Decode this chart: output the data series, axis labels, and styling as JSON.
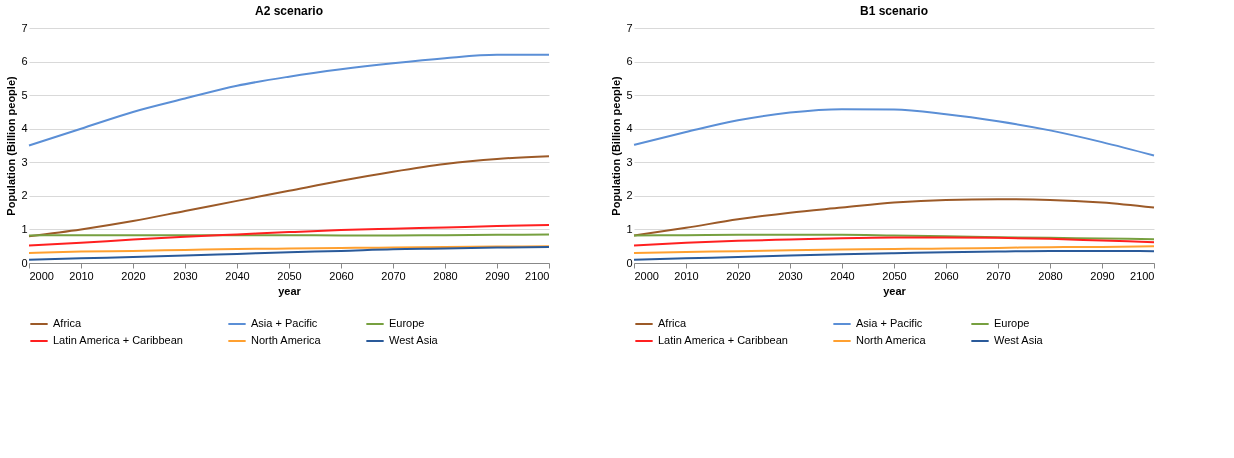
{
  "chart_data": [
    {
      "type": "line",
      "title": "A2 scenario",
      "xlabel": "year",
      "ylabel": "Population (Billion people)",
      "x": [
        2000,
        2010,
        2020,
        2030,
        2040,
        2050,
        2060,
        2070,
        2080,
        2090,
        2100
      ],
      "xlim": [
        2000,
        2100
      ],
      "xticks": [
        2000,
        2010,
        2020,
        2030,
        2040,
        2050,
        2060,
        2070,
        2080,
        2090,
        2100
      ],
      "ylim": [
        0,
        7
      ],
      "yticks": [
        0,
        1,
        2,
        3,
        4,
        5,
        6,
        7
      ],
      "grid": "y",
      "legend": "bottom",
      "marker": "none",
      "line_style": "solid",
      "series": [
        {
          "name": "Africa",
          "color": "#9c5a28",
          "values": [
            0.8,
            1.0,
            1.25,
            1.55,
            1.85,
            2.15,
            2.45,
            2.72,
            2.95,
            3.1,
            3.18
          ]
        },
        {
          "name": "Asia + Pacific",
          "color": "#5b8fd6",
          "values": [
            3.5,
            4.0,
            4.5,
            4.9,
            5.28,
            5.55,
            5.77,
            5.95,
            6.1,
            6.2,
            6.2
          ]
        },
        {
          "name": "Europe",
          "color": "#77a040",
          "values": [
            0.82,
            0.83,
            0.83,
            0.83,
            0.83,
            0.83,
            0.82,
            0.82,
            0.83,
            0.84,
            0.85
          ]
        },
        {
          "name": "Latin America + Caribbean",
          "color": "#ff2020",
          "values": [
            0.52,
            0.6,
            0.7,
            0.78,
            0.85,
            0.92,
            0.98,
            1.02,
            1.06,
            1.1,
            1.13
          ]
        },
        {
          "name": "North America",
          "color": "#ffa030",
          "values": [
            0.3,
            0.34,
            0.36,
            0.39,
            0.42,
            0.43,
            0.45,
            0.46,
            0.48,
            0.49,
            0.5
          ]
        },
        {
          "name": "West Asia",
          "color": "#2a5a9a",
          "values": [
            0.1,
            0.14,
            0.18,
            0.22,
            0.27,
            0.32,
            0.36,
            0.41,
            0.43,
            0.46,
            0.48
          ]
        }
      ]
    },
    {
      "type": "line",
      "title": "B1 scenario",
      "xlabel": "year",
      "ylabel": "Population (Billion people)",
      "x": [
        2000,
        2010,
        2020,
        2030,
        2040,
        2050,
        2060,
        2070,
        2080,
        2090,
        2100
      ],
      "xlim": [
        2000,
        2100
      ],
      "xticks": [
        2000,
        2010,
        2020,
        2030,
        2040,
        2050,
        2060,
        2070,
        2080,
        2090,
        2100
      ],
      "ylim": [
        0,
        7
      ],
      "yticks": [
        0,
        1,
        2,
        3,
        4,
        5,
        6,
        7
      ],
      "grid": "y",
      "legend": "bottom",
      "marker": "none",
      "line_style": "solid",
      "series": [
        {
          "name": "Africa",
          "color": "#9c5a28",
          "values": [
            0.82,
            1.05,
            1.3,
            1.5,
            1.65,
            1.8,
            1.88,
            1.9,
            1.88,
            1.8,
            1.65
          ]
        },
        {
          "name": "Asia + Pacific",
          "color": "#5b8fd6",
          "values": [
            3.52,
            3.9,
            4.25,
            4.48,
            4.58,
            4.57,
            4.43,
            4.22,
            3.95,
            3.6,
            3.2
          ]
        },
        {
          "name": "Europe",
          "color": "#77a040",
          "values": [
            0.82,
            0.83,
            0.84,
            0.84,
            0.84,
            0.82,
            0.8,
            0.77,
            0.75,
            0.73,
            0.71
          ]
        },
        {
          "name": "Latin America + Caribbean",
          "color": "#ff2020",
          "values": [
            0.52,
            0.6,
            0.66,
            0.7,
            0.74,
            0.76,
            0.76,
            0.75,
            0.72,
            0.67,
            0.62
          ]
        },
        {
          "name": "North America",
          "color": "#ffa030",
          "values": [
            0.3,
            0.33,
            0.35,
            0.38,
            0.4,
            0.42,
            0.43,
            0.45,
            0.47,
            0.48,
            0.5
          ]
        },
        {
          "name": "West Asia",
          "color": "#2a5a9a",
          "values": [
            0.1,
            0.14,
            0.18,
            0.22,
            0.26,
            0.29,
            0.32,
            0.34,
            0.36,
            0.36,
            0.35
          ]
        }
      ]
    }
  ]
}
